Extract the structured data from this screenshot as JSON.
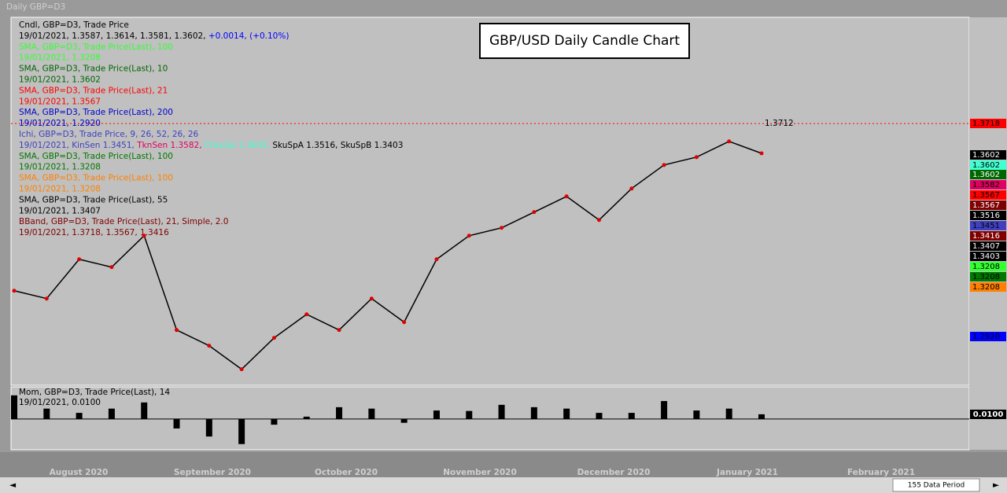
{
  "window_title": "Daily GBP=D3",
  "chart_data": {
    "type": "line",
    "title": "GBP/USD Daily Candle Chart",
    "legend": [
      [
        {
          "text": "Cndl, GBP=D3, Trade Price",
          "color": "#000000"
        }
      ],
      [
        {
          "text": "19/01/2021, 1.3587, 1.3614, 1.3581, 1.3602, ",
          "color": "#000000"
        },
        {
          "text": "+0.0014, (+0.10%)",
          "color": "#0000ff"
        }
      ],
      [
        {
          "text": "SMA, GBP=D3, Trade Price(Last),  100",
          "color": "#33ff33"
        }
      ],
      [
        {
          "text": "19/01/2021, 1.3208",
          "color": "#33ff33"
        }
      ],
      [
        {
          "text": "SMA, GBP=D3, Trade Price(Last),  10",
          "color": "#006600"
        }
      ],
      [
        {
          "text": "19/01/2021, 1.3602",
          "color": "#006600"
        }
      ],
      [
        {
          "text": "SMA, GBP=D3, Trade Price(Last),  21",
          "color": "#ff0000"
        }
      ],
      [
        {
          "text": "19/01/2021, 1.3567",
          "color": "#ff0000"
        }
      ],
      [
        {
          "text": "SMA, GBP=D3, Trade Price(Last),  200",
          "color": "#0000cc"
        }
      ],
      [
        {
          "text": "19/01/2021, 1.2920",
          "color": "#0000cc"
        }
      ],
      [
        {
          "text": "Ichi, GBP=D3, Trade Price,  9, 26, 52, 26, 26",
          "color": "#4040c0"
        }
      ],
      [
        {
          "text": "19/01/2021, KinSen 1.3451, ",
          "color": "#4040c0"
        },
        {
          "text": "TknSen 1.3582, ",
          "color": "#e00060"
        },
        {
          "text": "ChkuSp 1.3602, ",
          "color": "#40ffd0"
        },
        {
          "text": "SkuSpA 1.3516, SkuSpB 1.3403",
          "color": "#000000"
        }
      ],
      [
        {
          "text": "SMA, GBP=D3, Trade Price(Last),  100",
          "color": "#007700"
        }
      ],
      [
        {
          "text": "19/01/2021, 1.3208",
          "color": "#007700"
        }
      ],
      [
        {
          "text": "SMA, GBP=D3, Trade Price(Last),  100",
          "color": "#ff8000"
        }
      ],
      [
        {
          "text": "19/01/2021, 1.3208",
          "color": "#ff8000"
        }
      ],
      [
        {
          "text": "SMA, GBP=D3, Trade Price(Last),  55",
          "color": "#000000"
        }
      ],
      [
        {
          "text": "19/01/2021, 1.3407",
          "color": "#000000"
        }
      ],
      [
        {
          "text": "BBand, GBP=D3, Trade Price(Last),  21, Simple, 2.0",
          "color": "#800000"
        }
      ],
      [
        {
          "text": "19/01/2021, 1.3718, 1.3567, 1.3416",
          "color": "#800000"
        }
      ]
    ],
    "close": [
      1.3095,
      1.3066,
      1.3211,
      1.3182,
      1.3298,
      1.295,
      1.2892,
      1.2805,
      1.2921,
      1.3008,
      1.295,
      1.3066,
      1.2979,
      1.3211,
      1.3298,
      1.3327,
      1.3385,
      1.3443,
      1.3356,
      1.3472,
      1.3559,
      1.3588,
      1.3646,
      1.3602
    ],
    "color": "#000000",
    "ylim": [
      1.2746,
      1.4104
    ],
    "ref_line": 1.3712,
    "ref_color": "#ff0000",
    "price_labels": [
      {
        "text": "1.3718",
        "bg": "#ff0000",
        "fg": "#000000"
      },
      {
        "text": "1.3602",
        "bg": "#000000",
        "fg": "#ffffff"
      },
      {
        "text": "1.3602",
        "bg": "#40ffd0",
        "fg": "#000000"
      },
      {
        "text": "1.3602",
        "bg": "#006600",
        "fg": "#ffffff"
      },
      {
        "text": "1.3582",
        "bg": "#e00060",
        "fg": "#000000"
      },
      {
        "text": "1.3567",
        "bg": "#ff0000",
        "fg": "#000000"
      },
      {
        "text": "1.3567",
        "bg": "#800000",
        "fg": "#ffffff"
      },
      {
        "text": "1.3516",
        "bg": "#000000",
        "fg": "#ffffff"
      },
      {
        "text": "1.3451",
        "bg": "#4040c0",
        "fg": "#000000"
      },
      {
        "text": "1.3416",
        "bg": "#800000",
        "fg": "#ffffff"
      },
      {
        "text": "1.3407",
        "bg": "#000000",
        "fg": "#ffffff"
      },
      {
        "text": "1.3403",
        "bg": "#000000",
        "fg": "#ffffff"
      },
      {
        "text": "1.3208",
        "bg": "#33ff33",
        "fg": "#000000"
      },
      {
        "text": "1.3208",
        "bg": "#007700",
        "fg": "#000000"
      },
      {
        "text": "1.3208",
        "bg": "#ff8000",
        "fg": "#000000"
      },
      {
        "text": "1.2920",
        "bg": "#0000ff",
        "fg": "#000000"
      }
    ],
    "months": [
      "August 2020",
      "September 2020",
      "October 2020",
      "November 2020",
      "December 2020",
      "January 2021",
      "February 2021"
    ]
  },
  "momentum": {
    "type": "bar",
    "legend": [
      "Mom, GBP=D3, Trade Price(Last),  14",
      "19/01/2021, 0.0100"
    ],
    "values": [
      0.05,
      0.022,
      0.013,
      0.022,
      0.035,
      -0.02,
      -0.037,
      -0.053,
      -0.012,
      0.005,
      0.025,
      0.022,
      -0.008,
      0.018,
      0.017,
      0.03,
      0.025,
      0.022,
      0.013,
      0.013,
      0.038,
      0.018,
      0.022,
      0.01
    ],
    "ylim": [
      -0.065,
      0.068
    ],
    "color": "#000000",
    "last_label": "0.0100"
  },
  "footer": "155 Data Period"
}
